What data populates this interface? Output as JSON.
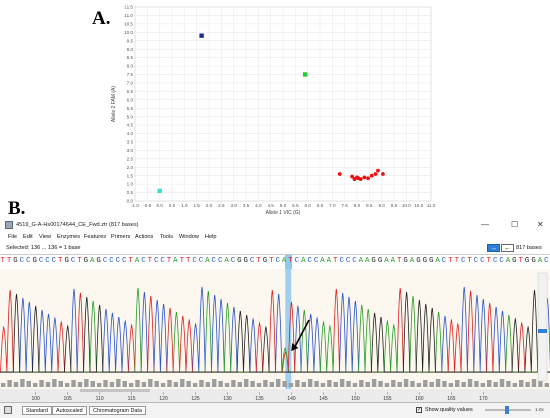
{
  "figure": {
    "label_a": "A.",
    "label_b": "B."
  },
  "chart_data": {
    "type": "scatter",
    "xlabel": "Allele 1 VIC (G)",
    "ylabel": "Allele 2 FAM (A)",
    "xlim": [
      -1.0,
      11.0
    ],
    "ylim": [
      0,
      11.5
    ],
    "xticks": [
      "-1.0",
      "-0.5",
      "0.0",
      "0.5",
      "1.0",
      "1.5",
      "2.0",
      "2.5",
      "3.0",
      "3.5",
      "4.0",
      "4.5",
      "5.0",
      "5.5",
      "6.0",
      "6.5",
      "7.0",
      "7.5",
      "8.0",
      "8.5",
      "9.0",
      "9.5",
      "10.0",
      "10.5",
      "11.0"
    ],
    "yticks": [
      "0.0",
      "0.5",
      "1.0",
      "1.5",
      "2.0",
      "2.5",
      "3.0",
      "3.5",
      "4.0",
      "4.5",
      "5.0",
      "5.5",
      "6.0",
      "6.5",
      "7.0",
      "7.5",
      "8.0",
      "8.5",
      "9.0",
      "9.5",
      "10.0",
      "10.5",
      "11.0",
      "11.5"
    ],
    "grid": true,
    "series": [
      {
        "color": "#1a2f8f",
        "shape": "square",
        "points": [
          [
            1.7,
            9.8
          ]
        ]
      },
      {
        "color": "#22cc33",
        "shape": "square",
        "points": [
          [
            5.9,
            7.5
          ]
        ]
      },
      {
        "color": "#33e0d8",
        "shape": "square",
        "points": [
          [
            0.0,
            0.6
          ]
        ]
      },
      {
        "color": "#ee1111",
        "shape": "circle",
        "points": [
          [
            7.3,
            1.6
          ],
          [
            7.8,
            1.45
          ],
          [
            7.9,
            1.3
          ],
          [
            8.0,
            1.4
          ],
          [
            8.05,
            1.35
          ],
          [
            8.15,
            1.3
          ],
          [
            8.3,
            1.4
          ],
          [
            8.45,
            1.35
          ],
          [
            8.6,
            1.5
          ],
          [
            8.75,
            1.6
          ],
          [
            8.85,
            1.8
          ],
          [
            9.05,
            1.6
          ]
        ]
      }
    ]
  },
  "app": {
    "title": "4519_G-A-Hs00174644_CE_Fwd.ztr  (817 bases)",
    "window_buttons": {
      "minimize": "—",
      "maximize": "☐",
      "close": "✕"
    },
    "menu": [
      "File",
      "Edit",
      "View",
      "Enzymes",
      "Features",
      "Primers",
      "Actions",
      "Tools",
      "Window",
      "Help"
    ],
    "selection": "Selected: 136 ... 136 = 1 base",
    "base_count": "817 bases",
    "nav_icons": [
      "arrow-right-icon",
      "arrow-left-icon"
    ],
    "sequence": "TTGCCGCCCTGCTGAGCCCCTACTCCTATTCCACCACGGCTGTCATCACCAATCCCAAGGAATGAGGGACTTCTCCTCCAGTGGAC",
    "base_colors": {
      "A": "#2a9d2a",
      "C": "#2a55cc",
      "G": "#222222",
      "T": "#dd2222"
    },
    "position_ticks": [
      "100",
      "105",
      "110",
      "115",
      "120",
      "125",
      "130",
      "135",
      "140",
      "145",
      "150",
      "155",
      "160",
      "165",
      "170"
    ],
    "zoom_label": "1.0x",
    "tabs": [
      "Standard",
      "Autoscaled",
      "Chromatogram Data"
    ],
    "show_quality_label": "Show quality values",
    "show_quality_checked": true,
    "check_glyph": "✓"
  }
}
